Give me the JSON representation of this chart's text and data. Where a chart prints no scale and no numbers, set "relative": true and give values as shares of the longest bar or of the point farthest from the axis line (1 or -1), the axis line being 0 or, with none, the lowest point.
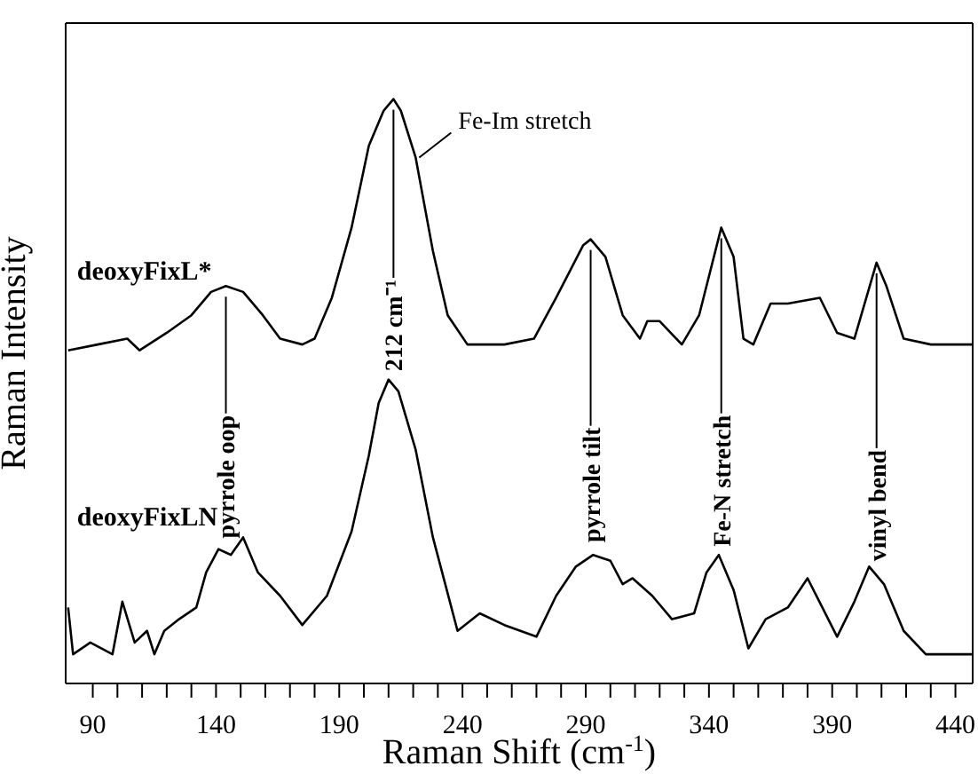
{
  "chart_data": {
    "type": "line",
    "xlabel": "Raman Shift (cm$^{-1}$)",
    "ylabel": "Raman Intensity",
    "relative": true,
    "xlim": [
      79,
      447
    ],
    "xticks": [
      90,
      {
        "value": 100,
        "label": null
      },
      {
        "value": 110,
        "label": null
      },
      {
        "value": 120,
        "label": null
      },
      {
        "value": 130,
        "label": null
      },
      140,
      {
        "value": 150,
        "label": null
      },
      {
        "value": 160,
        "label": null
      },
      {
        "value": 170,
        "label": null
      },
      {
        "value": 180,
        "label": null
      },
      190,
      {
        "value": 200,
        "label": null
      },
      {
        "value": 210,
        "label": null
      },
      {
        "value": 220,
        "label": null
      },
      {
        "value": 230,
        "label": null
      },
      240,
      {
        "value": 250,
        "label": null
      },
      {
        "value": 260,
        "label": null
      },
      {
        "value": 270,
        "label": null
      },
      {
        "value": 280,
        "label": null
      },
      290,
      {
        "value": 300,
        "label": null
      },
      {
        "value": 310,
        "label": null
      },
      {
        "value": 320,
        "label": null
      },
      {
        "value": 330,
        "label": null
      },
      340,
      {
        "value": 350,
        "label": null
      },
      {
        "value": 360,
        "label": null
      },
      {
        "value": 370,
        "label": null
      },
      {
        "value": 380,
        "label": null
      },
      390,
      {
        "value": 400,
        "label": null
      },
      {
        "value": 410,
        "label": null
      },
      {
        "value": 420,
        "label": null
      },
      {
        "value": 430,
        "label": null
      },
      440
    ],
    "marker": "none",
    "line_style": "solid",
    "series": [
      {
        "name": "deoxyFixL*",
        "color": "#000000",
        "x": [
          80,
          92,
          104,
          109,
          120,
          130,
          138,
          144,
          151,
          159,
          166,
          175,
          180,
          187,
          195,
          202,
          208,
          212,
          215,
          221,
          228,
          234,
          242,
          257,
          269,
          278,
          289,
          292,
          298,
          305,
          312,
          315,
          320,
          329,
          336,
          345,
          350,
          354,
          358,
          365,
          372,
          385,
          392,
          399,
          408,
          412,
          419,
          430,
          442,
          447
        ],
        "values": [
          0.57,
          0.58,
          0.59,
          0.57,
          0.6,
          0.63,
          0.67,
          0.68,
          0.67,
          0.63,
          0.59,
          0.58,
          0.59,
          0.66,
          0.78,
          0.92,
          0.98,
          1.0,
          0.98,
          0.9,
          0.74,
          0.63,
          0.58,
          0.58,
          0.59,
          0.66,
          0.75,
          0.76,
          0.73,
          0.63,
          0.59,
          0.62,
          0.62,
          0.58,
          0.63,
          0.78,
          0.73,
          0.59,
          0.58,
          0.65,
          0.65,
          0.66,
          0.6,
          0.59,
          0.72,
          0.68,
          0.59,
          0.58,
          0.58,
          0.58
        ]
      },
      {
        "name": "deoxyFixLN",
        "color": "#000000",
        "x": [
          80,
          82,
          89,
          98,
          102,
          107,
          112,
          115,
          119,
          125,
          132,
          136,
          141,
          146,
          151,
          157,
          166,
          175,
          185,
          195,
          202,
          206,
          210,
          214,
          221,
          228,
          238,
          247,
          257,
          270,
          278,
          286,
          293,
          300,
          305,
          309,
          317,
          325,
          334,
          339,
          344,
          350,
          356,
          363,
          372,
          380,
          386,
          392,
          399,
          405,
          411,
          419,
          428,
          440,
          447
        ],
        "values": [
          0.13,
          0.05,
          0.07,
          0.05,
          0.14,
          0.07,
          0.09,
          0.05,
          0.09,
          0.11,
          0.13,
          0.19,
          0.23,
          0.22,
          0.25,
          0.19,
          0.15,
          0.1,
          0.15,
          0.26,
          0.39,
          0.48,
          0.52,
          0.5,
          0.4,
          0.25,
          0.09,
          0.12,
          0.1,
          0.08,
          0.15,
          0.2,
          0.22,
          0.21,
          0.17,
          0.18,
          0.15,
          0.11,
          0.12,
          0.19,
          0.22,
          0.16,
          0.06,
          0.11,
          0.13,
          0.18,
          0.13,
          0.08,
          0.14,
          0.2,
          0.17,
          0.09,
          0.05,
          0.05,
          0.05
        ]
      }
    ],
    "annotations": [
      {
        "text": "212 cm⁻¹",
        "x": 212,
        "y": 1.0
      },
      {
        "text": "Fe-Im stretch",
        "x": 221,
        "y": 0.9
      },
      {
        "text": "pyrrole oop",
        "x": 144,
        "y": 0.68
      },
      {
        "text": "pyrrole tilt",
        "x": 292,
        "y": 0.76
      },
      {
        "text": "Fe-N stretch",
        "x": 345,
        "y": 0.78
      },
      {
        "text": "vinyl bend",
        "x": 408,
        "y": 0.72
      }
    ]
  }
}
